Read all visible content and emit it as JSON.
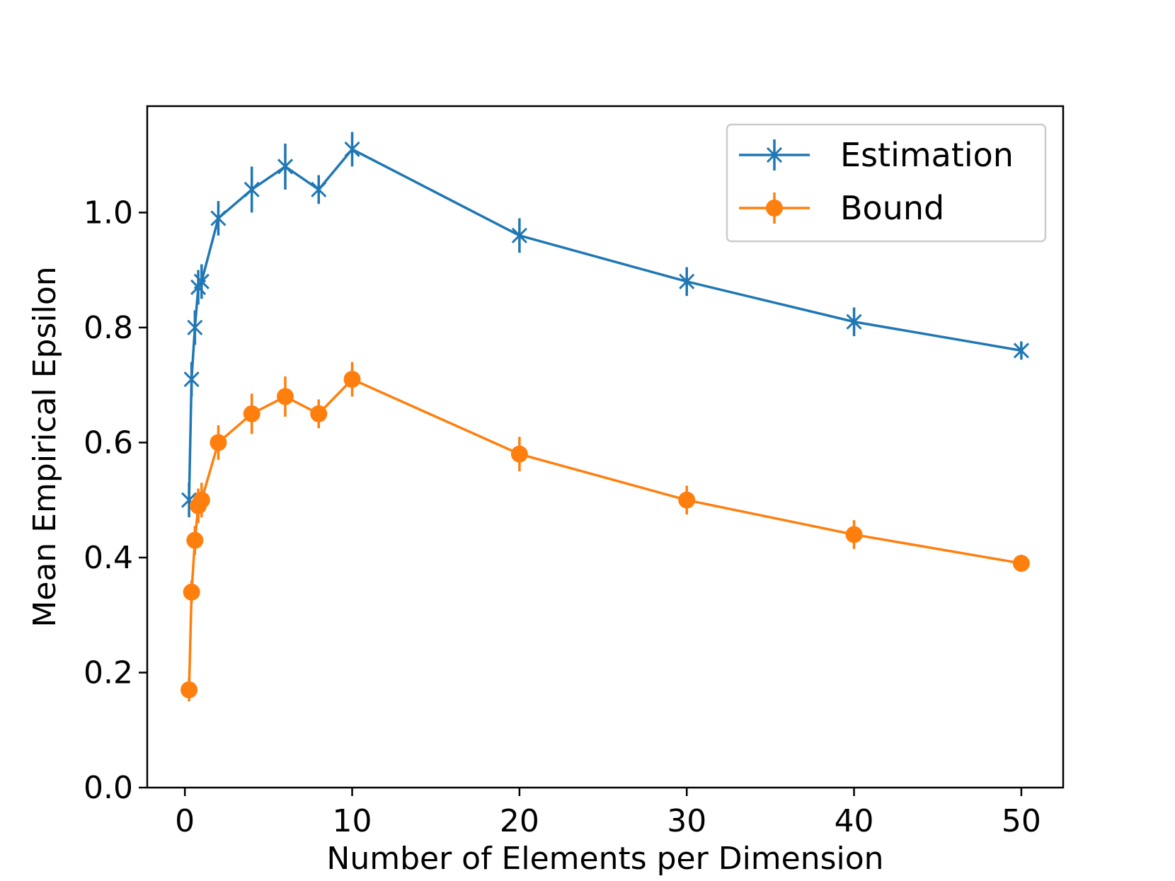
{
  "chart_data": {
    "type": "line",
    "title": "",
    "xlabel": "Number of Elements per Dimension",
    "ylabel": "Mean Empirical Epsilon",
    "xlim": [
      -2.25,
      52.5
    ],
    "ylim": [
      0.0,
      1.185
    ],
    "xticks": [
      0,
      10,
      20,
      30,
      40,
      50
    ],
    "xtick_labels": [
      "0",
      "10",
      "20",
      "30",
      "40",
      "50"
    ],
    "yticks": [
      0.0,
      0.2,
      0.4,
      0.6,
      0.8,
      1.0
    ],
    "ytick_labels": [
      "0.0",
      "0.2",
      "0.4",
      "0.6",
      "0.8",
      "1.0"
    ],
    "grid": false,
    "legend_position": "top-right",
    "series": [
      {
        "name": "Estimation",
        "color": "#1f77b4",
        "marker": "x-star",
        "x": [
          0.25,
          0.4,
          0.6,
          0.8,
          1,
          2,
          4,
          6,
          8,
          10,
          20,
          30,
          40,
          50
        ],
        "y": [
          0.5,
          0.71,
          0.8,
          0.87,
          0.88,
          0.99,
          1.04,
          1.08,
          1.04,
          1.11,
          0.96,
          0.88,
          0.81,
          0.76
        ],
        "err": [
          0.03,
          0.03,
          0.03,
          0.03,
          0.03,
          0.03,
          0.04,
          0.04,
          0.025,
          0.03,
          0.03,
          0.025,
          0.025,
          0.015
        ]
      },
      {
        "name": "Bound",
        "color": "#ff7f0e",
        "marker": "circle",
        "x": [
          0.25,
          0.4,
          0.6,
          0.8,
          1,
          2,
          4,
          6,
          8,
          10,
          20,
          30,
          40,
          50
        ],
        "y": [
          0.17,
          0.34,
          0.43,
          0.49,
          0.5,
          0.6,
          0.65,
          0.68,
          0.65,
          0.71,
          0.58,
          0.5,
          0.44,
          0.39
        ],
        "err": [
          0.02,
          0.02,
          0.025,
          0.03,
          0.03,
          0.03,
          0.035,
          0.035,
          0.025,
          0.03,
          0.03,
          0.025,
          0.025,
          0.015
        ]
      }
    ]
  }
}
